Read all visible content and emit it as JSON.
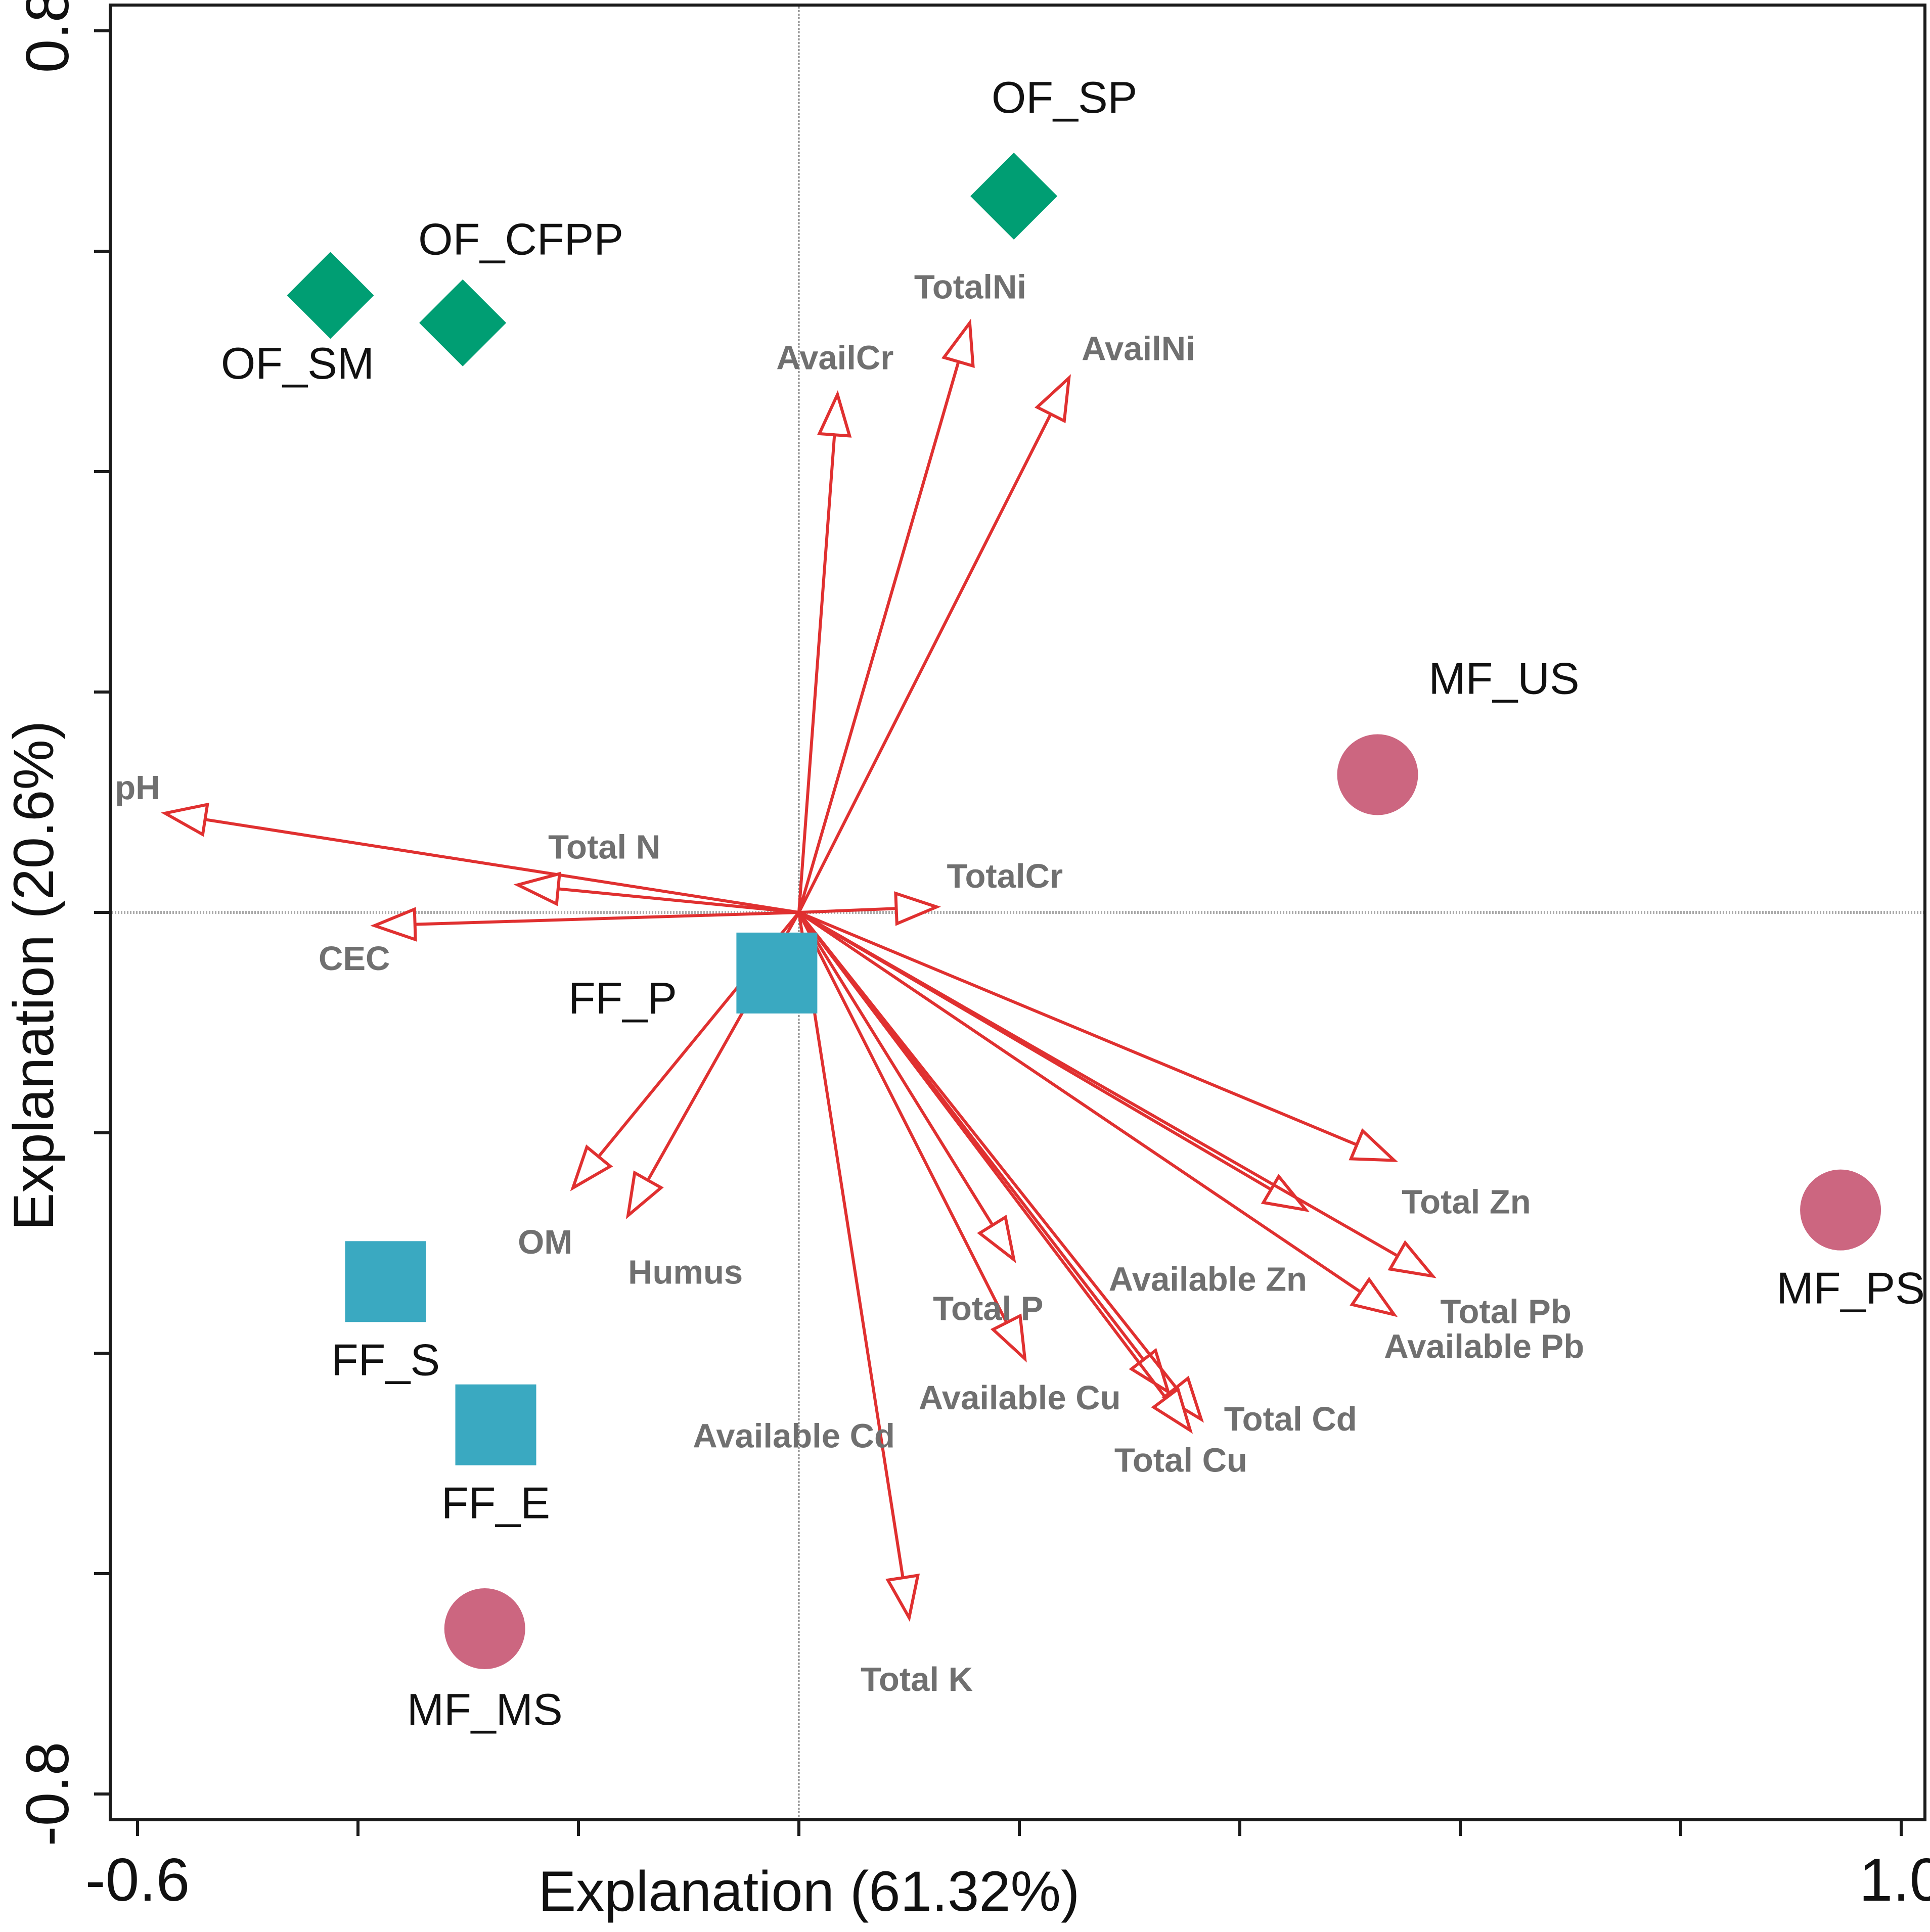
{
  "chart_data": {
    "type": "scatter",
    "subtype": "RDA biplot",
    "xlabel": "Explanation (61.32%)",
    "ylabel": "Explanation (20.6%)",
    "xlim": [
      -0.62,
      1.02
    ],
    "ylim": [
      -0.82,
      0.82
    ],
    "x_tick_labels": [
      {
        "value": -0.6,
        "label": "-0.6"
      },
      {
        "value": 1.0,
        "label": "1.0"
      }
    ],
    "y_tick_labels": [
      {
        "value": 0.8,
        "label": "0.8"
      },
      {
        "value": -0.8,
        "label": "-0.8"
      }
    ],
    "x_ticks": [
      -0.6,
      -0.4,
      -0.2,
      0.0,
      0.2,
      0.4,
      0.6,
      0.8,
      1.0
    ],
    "y_ticks": [
      -0.8,
      -0.6,
      -0.4,
      -0.2,
      0.0,
      0.2,
      0.4,
      0.6,
      0.8
    ],
    "groups": [
      {
        "name": "OF",
        "shape": "diamond",
        "color": "#009e73"
      },
      {
        "name": "FF",
        "shape": "square",
        "color": "#3aa9c1"
      },
      {
        "name": "MF",
        "shape": "circle",
        "color": "#cc6680"
      }
    ],
    "samples": [
      {
        "name": "OF_SP",
        "group": "OF",
        "x": 0.195,
        "y": 0.65
      },
      {
        "name": "OF_SM",
        "group": "OF",
        "x": -0.425,
        "y": 0.56
      },
      {
        "name": "OF_CFPP",
        "group": "OF",
        "x": -0.305,
        "y": 0.535
      },
      {
        "name": "MF_US",
        "group": "MF",
        "x": 0.525,
        "y": 0.125
      },
      {
        "name": "MF_PS",
        "group": "MF",
        "x": 0.945,
        "y": -0.27
      },
      {
        "name": "MF_MS",
        "group": "MF",
        "x": -0.285,
        "y": -0.65
      },
      {
        "name": "FF_P",
        "group": "FF",
        "x": -0.02,
        "y": -0.055
      },
      {
        "name": "FF_S",
        "group": "FF",
        "x": -0.375,
        "y": -0.335
      },
      {
        "name": "FF_E",
        "group": "FF",
        "x": -0.275,
        "y": -0.465
      }
    ],
    "vectors": [
      {
        "name": "pH",
        "x": -0.575,
        "y": 0.09
      },
      {
        "name": "Total N",
        "x": -0.255,
        "y": 0.025
      },
      {
        "name": "CEC",
        "x": -0.385,
        "y": -0.012
      },
      {
        "name": "TotalCr",
        "x": 0.125,
        "y": 0.005
      },
      {
        "name": "AvailCr",
        "x": 0.035,
        "y": 0.47
      },
      {
        "name": "TotalNi",
        "x": 0.155,
        "y": 0.535
      },
      {
        "name": "AvailNi",
        "x": 0.245,
        "y": 0.485
      },
      {
        "name": "OM",
        "x": -0.205,
        "y": -0.25
      },
      {
        "name": "Humus",
        "x": -0.155,
        "y": -0.275
      },
      {
        "name": "Total Zn",
        "x": 0.54,
        "y": -0.225
      },
      {
        "name": "Available Zn",
        "x": 0.46,
        "y": -0.27
      },
      {
        "name": "Total Pb",
        "x": 0.575,
        "y": -0.33
      },
      {
        "name": "Available Pb",
        "x": 0.54,
        "y": -0.365
      },
      {
        "name": "Total P",
        "x": 0.195,
        "y": -0.315
      },
      {
        "name": "Available Cu",
        "x": 0.205,
        "y": -0.405
      },
      {
        "name": "Available Cd",
        "x": 0.335,
        "y": -0.435
      },
      {
        "name": "Total Cd",
        "x": 0.365,
        "y": -0.46
      },
      {
        "name": "Total Cu",
        "x": 0.355,
        "y": -0.47
      },
      {
        "name": "Total K",
        "x": 0.1,
        "y": -0.64
      }
    ]
  }
}
